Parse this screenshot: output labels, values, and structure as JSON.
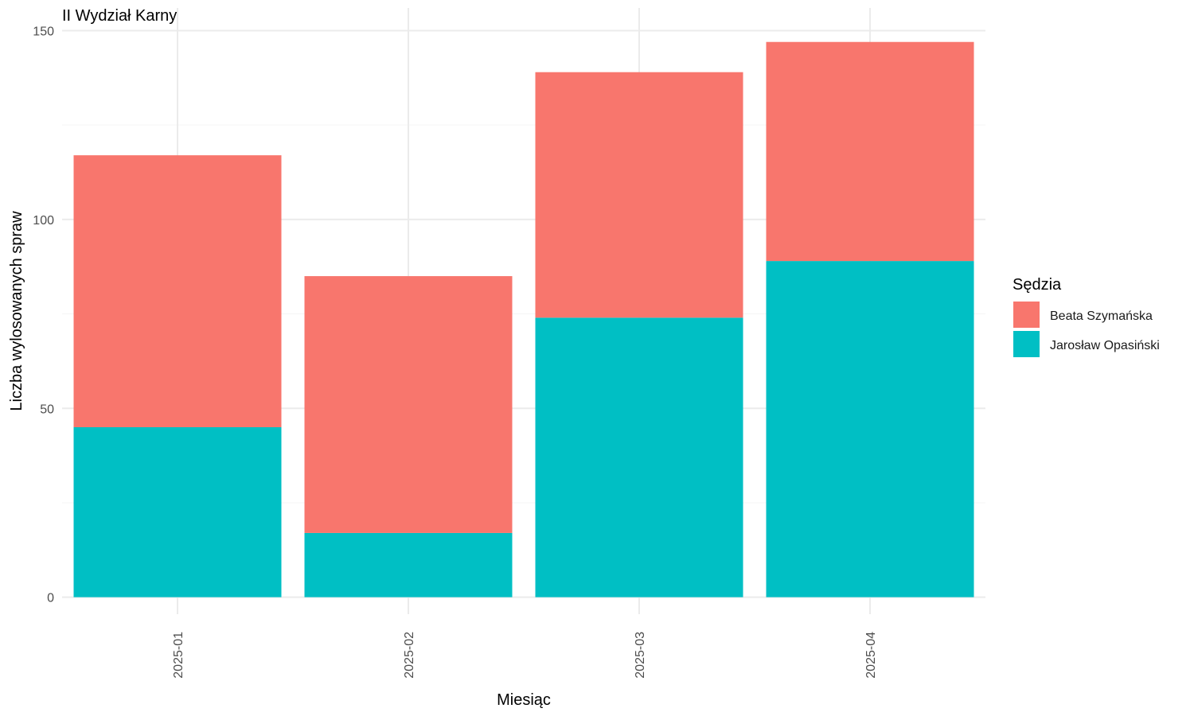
{
  "chart_data": {
    "type": "bar",
    "stacked": true,
    "title": "II Wydział Karny",
    "xlabel": "Miesiąc",
    "ylabel": "Liczba wylosowanych spraw",
    "categories": [
      "2025-01",
      "2025-02",
      "2025-03",
      "2025-04"
    ],
    "series": [
      {
        "name": "Jarosław Opasiński",
        "values": [
          45,
          17,
          74,
          89
        ],
        "color": "#00BFC4"
      },
      {
        "name": "Beata Szymańska",
        "values": [
          72,
          68,
          65,
          58
        ],
        "color": "#F8766D"
      }
    ],
    "yticks": [
      0,
      50,
      100,
      150
    ],
    "ylim": [
      -4.5,
      156
    ],
    "x_tick_rotation": -90,
    "grid": true,
    "legend": {
      "title": "Sędzia",
      "position": "right",
      "order": [
        "Beata Szymańska",
        "Jarosław Opasiński"
      ]
    }
  }
}
